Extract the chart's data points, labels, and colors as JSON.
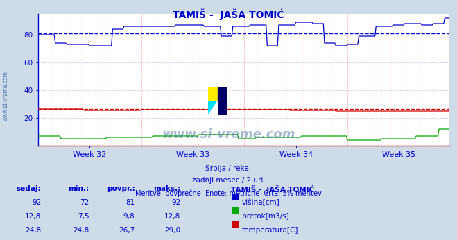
{
  "title": "TAMIŠ -  JAŠA TOMIĆ",
  "bg_color": "#cddce8",
  "plot_bg_color": "#ffffff",
  "grid_color_major": "#ffaaaa",
  "grid_color_minor": "#ffe0e0",
  "grid_h_color": "#ddddff",
  "weeks": [
    "Week 32",
    "Week 33",
    "Week 34",
    "Week 35"
  ],
  "ylim": [
    0,
    95
  ],
  "yticks": [
    20,
    40,
    60,
    80
  ],
  "avg_visina": 81,
  "avg_temperatura": 26.7,
  "subtitle1": "Srbija / reke.",
  "subtitle2": "zadnji mesec / 2 uri.",
  "subtitle3": "Meritve: povprečne  Enote: metrične  Črta: 5% meritev",
  "text_color": "#0000cc",
  "label_sedaj": "sedaj:",
  "label_min": "min.:",
  "label_povpr": "povpr.:",
  "label_maks": "maks.:",
  "label_station": "TAMIŠ -  JAŠA TOMIĆ",
  "rows": [
    {
      "sedaj": "92",
      "min": "72",
      "povpr": "81",
      "maks": "92",
      "color": "#0000cc",
      "label": "višina[cm]"
    },
    {
      "sedaj": "12,8",
      "min": "7,5",
      "povpr": "9,8",
      "maks": "12,8",
      "color": "#00aa00",
      "label": "pretok[m3/s]"
    },
    {
      "sedaj": "24,8",
      "min": "24,8",
      "povpr": "26,7",
      "maks": "29,0",
      "color": "#cc0000",
      "label": "temperatura[C]"
    }
  ],
  "watermark_text": "www.si-vreme.com",
  "side_text": "www.si-vreme.com"
}
